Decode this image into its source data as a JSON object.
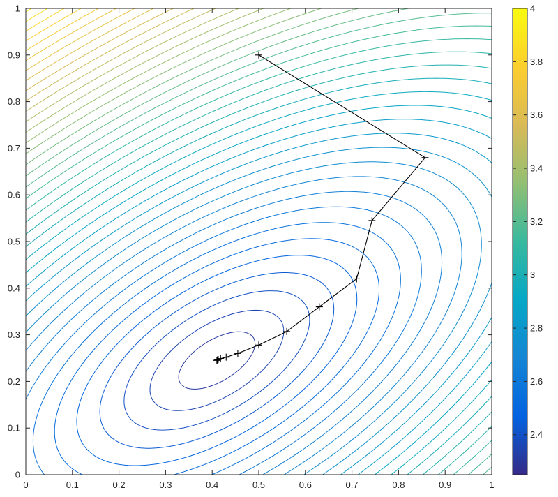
{
  "chart_data": {
    "type": "contour",
    "title": "",
    "xlabel": "",
    "ylabel": "",
    "xlim": [
      0,
      1
    ],
    "ylim": [
      0,
      1
    ],
    "x_ticks": [
      "0",
      "0.1",
      "0.2",
      "0.3",
      "0.4",
      "0.5",
      "0.6",
      "0.7",
      "0.8",
      "0.9",
      "1"
    ],
    "y_ticks": [
      "0",
      "0.1",
      "0.2",
      "0.3",
      "0.4",
      "0.5",
      "0.6",
      "0.7",
      "0.8",
      "0.9",
      "1"
    ],
    "grid": false,
    "colormap": "parula",
    "colorbar": {
      "range": [
        2.25,
        4.0
      ],
      "ticks": [
        "2.4",
        "2.6",
        "2.8",
        "3",
        "3.2",
        "3.4",
        "3.6",
        "3.8",
        "4"
      ],
      "tick_values": [
        2.4,
        2.6,
        2.8,
        3.0,
        3.2,
        3.4,
        3.6,
        3.8,
        4.0
      ],
      "position": "right"
    },
    "contour_levels": {
      "min": 2.27,
      "max": 3.99,
      "count": 42
    },
    "surface_minimum": {
      "x": 0.41,
      "y": 0.245
    },
    "optimization_path": {
      "marker": "+",
      "color": "#000000",
      "x": [
        0.5,
        0.857,
        0.743,
        0.71,
        0.63,
        0.56,
        0.5,
        0.455,
        0.43,
        0.418,
        0.413,
        0.411,
        0.41
      ],
      "y": [
        0.9,
        0.68,
        0.545,
        0.42,
        0.36,
        0.307,
        0.278,
        0.26,
        0.252,
        0.249,
        0.247,
        0.246,
        0.245
      ]
    }
  }
}
